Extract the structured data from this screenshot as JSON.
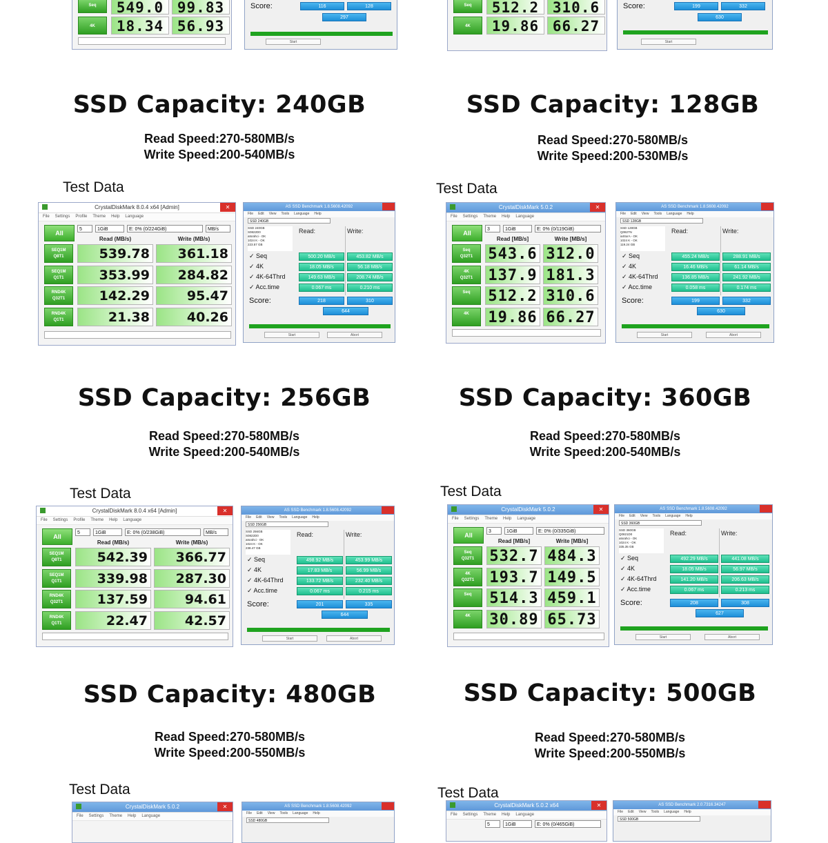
{
  "top_partial": {
    "left_cdm": {
      "val1": [
        "549.0",
        "99.83"
      ],
      "row_label": "4K",
      "val2": [
        "18.34",
        "56.93"
      ]
    },
    "left_as": {
      "score_label": "Score:",
      "read": "116",
      "write": "128",
      "total": "297",
      "start": "Start"
    },
    "right_cdm": {
      "val1": [
        "512.2",
        "310.6"
      ],
      "row_label_1": "Seq",
      "row_label": "4K",
      "val2": [
        "19.86",
        "66.27"
      ]
    },
    "right_as": {
      "score_label": "Score:",
      "read": "199",
      "write": "332",
      "total": "630",
      "start": "Start"
    }
  },
  "blocks": [
    {
      "capacity": "SSD Capacity: 240GB",
      "read_speed": "Read Speed:270-580MB/s",
      "write_speed": "Write Speed:200-540MB/s",
      "test_data": "Test Data",
      "cdm": {
        "title": "CrystalDiskMark 8.0.4 x64 [Admin]",
        "menu": [
          "File",
          "Settings",
          "Profile",
          "Theme",
          "Help",
          "Language"
        ],
        "all": "All",
        "count": "5",
        "size": "1GiB",
        "drive": "E: 0% (0/224GiB)",
        "unit": "MB/s",
        "read_header": "Read (MB/s)",
        "write_header": "Write (MB/s)",
        "rows": [
          {
            "label1": "SEQ1M",
            "label2": "Q8T1",
            "read": "539.78",
            "write": "361.18"
          },
          {
            "label1": "SEQ1M",
            "label2": "Q1T1",
            "read": "353.99",
            "write": "284.82"
          },
          {
            "label1": "RND4K",
            "label2": "Q32T1",
            "read": "142.29",
            "write": "95.47"
          },
          {
            "label1": "RND4K",
            "label2": "Q1T1",
            "read": "21.38",
            "write": "40.26"
          }
        ]
      },
      "as": {
        "title": "AS SSD Benchmark 1.8.5608.42092",
        "menu": [
          "File",
          "Edit",
          "View",
          "Tools",
          "Language",
          "Help"
        ],
        "info": [
          "SSD 240GB",
          "S0822D0",
          "atsrahci - OK",
          "1024 K - OK",
          "223.57 GB"
        ],
        "read_h": "Read:",
        "write_h": "Write:",
        "rows": [
          {
            "name": "✓ Seq",
            "read": "500.20 MB/s",
            "write": "453.82 MB/s"
          },
          {
            "name": "✓ 4K",
            "read": "18.05 MB/s",
            "write": "56.18 MB/s"
          },
          {
            "name": "✓ 4K-64Thrd",
            "read": "149.63 MB/s",
            "write": "208.74 MB/s"
          },
          {
            "name": "✓ Acc.time",
            "read": "0.067 ms",
            "write": "0.210 ms"
          }
        ],
        "score_label": "Score:",
        "score_read": "218",
        "score_write": "310",
        "score_total": "644",
        "start": "Start",
        "abort": "Abort"
      }
    },
    {
      "capacity": "SSD Capacity: 128GB",
      "read_speed": "Read Speed:270-580MB/s",
      "write_speed": "Write Speed:200-530MB/s",
      "test_data": "Test Data",
      "cdm": {
        "title": "CrystalDiskMark 5.0.2",
        "menu": [
          "File",
          "Settings",
          "Theme",
          "Help",
          "Language"
        ],
        "all": "All",
        "count": "3",
        "size": "1GiB",
        "drive": "E: 0% (0/119GiB)",
        "unit": "",
        "read_header": "Read [MB/s]",
        "write_header": "Write [MB/s]",
        "rows": [
          {
            "label1": "Seq",
            "label2": "Q32T1",
            "read": "543.6",
            "write": "312.0"
          },
          {
            "label1": "4K",
            "label2": "Q32T1",
            "read": "137.9",
            "write": "181.3"
          },
          {
            "label1": "Seq",
            "label2": "",
            "read": "512.2",
            "write": "310.6"
          },
          {
            "label1": "4K",
            "label2": "",
            "read": "19.86",
            "write": "66.27"
          }
        ]
      },
      "as": {
        "title": "AS SSD Benchmark 1.8.5608.42092",
        "menu": [
          "File",
          "Edit",
          "View",
          "Tools",
          "Language",
          "Help"
        ],
        "info": [
          "SSD 128GB",
          "Q0827N",
          "iaStorA - OK",
          "1024 K - OK",
          "119.24 GB"
        ],
        "read_h": "Read:",
        "write_h": "Write:",
        "rows": [
          {
            "name": "✓ Seq",
            "read": "455.24 MB/s",
            "write": "288.91 MB/s"
          },
          {
            "name": "✓ 4K",
            "read": "16.46 MB/s",
            "write": "61.14 MB/s"
          },
          {
            "name": "✓ 4K-64Thrd",
            "read": "136.85 MB/s",
            "write": "241.92 MB/s"
          },
          {
            "name": "✓ Acc.time",
            "read": "0.058 ms",
            "write": "0.174 ms"
          }
        ],
        "score_label": "Score:",
        "score_read": "199",
        "score_write": "332",
        "score_total": "630",
        "start": "Start",
        "abort": "Abort"
      }
    },
    {
      "capacity": "SSD Capacity: 256GB",
      "read_speed": "Read Speed:270-580MB/s",
      "write_speed": "Write Speed:200-540MB/s",
      "test_data": "Test Data",
      "cdm": {
        "title": "CrystalDiskMark 8.0.4 x64 [Admin]",
        "menu": [
          "File",
          "Settings",
          "Profile",
          "Theme",
          "Help",
          "Language"
        ],
        "all": "All",
        "count": "5",
        "size": "1GiB",
        "drive": "E: 0% (0/238GiB)",
        "unit": "MB/s",
        "read_header": "Read (MB/s)",
        "write_header": "Write (MB/s)",
        "rows": [
          {
            "label1": "SEQ1M",
            "label2": "Q8T1",
            "read": "542.39",
            "write": "366.77"
          },
          {
            "label1": "SEQ1M",
            "label2": "Q1T1",
            "read": "339.98",
            "write": "287.30"
          },
          {
            "label1": "RND4K",
            "label2": "Q32T1",
            "read": "137.59",
            "write": "94.61"
          },
          {
            "label1": "RND4K",
            "label2": "Q1T1",
            "read": "22.47",
            "write": "42.57"
          }
        ]
      },
      "as": {
        "title": "AS SSD Benchmark 1.8.5608.42092",
        "menu": [
          "File",
          "Edit",
          "View",
          "Tools",
          "Language",
          "Help"
        ],
        "info": [
          "SSD 256GB",
          "S0822D0",
          "atsrahci - OK",
          "1024 K - OK",
          "238.47 GB"
        ],
        "read_h": "Read:",
        "write_h": "Write:",
        "rows": [
          {
            "name": "✓ Seq",
            "read": "498.92 MB/s",
            "write": "453.99 MB/s"
          },
          {
            "name": "✓ 4K",
            "read": "17.83 MB/s",
            "write": "56.99 MB/s"
          },
          {
            "name": "✓ 4K-64Thrd",
            "read": "133.72 MB/s",
            "write": "232.40 MB/s"
          },
          {
            "name": "✓ Acc.time",
            "read": "0.067 ms",
            "write": "0.215 ms"
          }
        ],
        "score_label": "Score:",
        "score_read": "201",
        "score_write": "335",
        "score_total": "644",
        "start": "Start",
        "abort": "Abort"
      }
    },
    {
      "capacity": "SSD Capacity: 360GB",
      "read_speed": "Read Speed:270-580MB/s",
      "write_speed": "Write Speed:200-540MB/s",
      "test_data": "Test Data",
      "cdm": {
        "title": "CrystalDiskMark 5.0.2",
        "menu": [
          "File",
          "Settings",
          "Theme",
          "Help",
          "Language"
        ],
        "all": "All",
        "count": "3",
        "size": "1GiB",
        "drive": "E: 0% (0/335GiB)",
        "unit": "",
        "read_header": "Read [MB/s]",
        "write_header": "Write [MB/s]",
        "rows": [
          {
            "label1": "Seq",
            "label2": "Q32T1",
            "read": "532.7",
            "write": "484.3"
          },
          {
            "label1": "4K",
            "label2": "Q32T1",
            "read": "193.7",
            "write": "149.5"
          },
          {
            "label1": "Seq",
            "label2": "",
            "read": "514.3",
            "write": "459.1"
          },
          {
            "label1": "4K",
            "label2": "",
            "read": "30.89",
            "write": "65.73"
          }
        ]
      },
      "as": {
        "title": "AS SSD Benchmark 1.8.5608.42092",
        "menu": [
          "File",
          "Edit",
          "View",
          "Tools",
          "Language",
          "Help"
        ],
        "info": [
          "SSD 360GB",
          "Q0821D0",
          "atsrahci - OK",
          "1024 K - OK",
          "335.35 GB"
        ],
        "read_h": "Read:",
        "write_h": "Write:",
        "rows": [
          {
            "name": "✓ Seq",
            "read": "492.29 MB/s",
            "write": "441.08 MB/s"
          },
          {
            "name": "✓ 4K",
            "read": "18.05 MB/s",
            "write": "56.97 MB/s"
          },
          {
            "name": "✓ 4K-64Thrd",
            "read": "141.20 MB/s",
            "write": "206.63 MB/s"
          },
          {
            "name": "✓ Acc.time",
            "read": "0.067 ms",
            "write": "0.213 ms"
          }
        ],
        "score_label": "Score:",
        "score_read": "208",
        "score_write": "308",
        "score_total": "627",
        "start": "Start",
        "abort": "Abort"
      }
    },
    {
      "capacity": "SSD Capacity: 480GB",
      "read_speed": "Read Speed:270-580MB/s",
      "write_speed": "Write Speed:200-550MB/s",
      "test_data": "Test Data",
      "cdm_title": "CrystalDiskMark 5.0.2",
      "cdm_menu": [
        "File",
        "Settings",
        "Theme",
        "Help",
        "Language"
      ],
      "as_title": "AS SSD Benchmark 1.8.5608.42092",
      "as_menu": [
        "File",
        "Edit",
        "View",
        "Tools",
        "Language",
        "Help"
      ],
      "as_drive": "SSD 480GB"
    },
    {
      "capacity": "SSD Capacity: 500GB",
      "read_speed": "Read Speed:270-580MB/s",
      "write_speed": "Write Speed:200-550MB/s",
      "test_data": "Test Data",
      "cdm_title": "CrystalDiskMark 5.0.2 x64",
      "cdm_menu": [
        "File",
        "Settings",
        "Theme",
        "Help",
        "Language"
      ],
      "cdm_count": "5",
      "cdm_size": "1GiB",
      "cdm_drive": "E: 0% (0/465GiB)",
      "as_title": "AS SSD Benchmark 2.0.7316.34247",
      "as_menu": [
        "File",
        "Edit",
        "View",
        "Tools",
        "Language",
        "Help"
      ],
      "as_drive": "SSD 500GB"
    }
  ]
}
